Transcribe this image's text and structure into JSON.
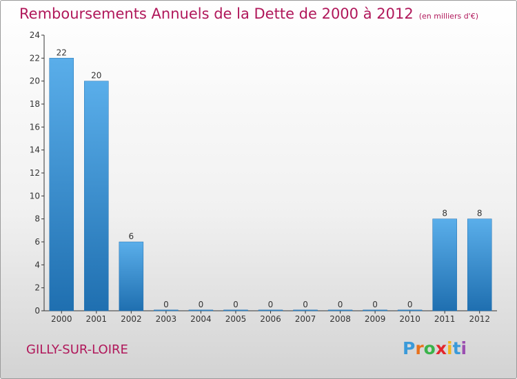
{
  "title": "Remboursements Annuels de la Dette de 2000 à 2012",
  "subtitle": "(en milliers d'€)",
  "commune": "GILLY-SUR-LOIRE",
  "logo": {
    "letters": [
      "P",
      "r",
      "o",
      "x",
      "i",
      "t",
      "i"
    ],
    "colors": [
      "#3a9ad9",
      "#e8711c",
      "#3ab34a",
      "#e3262d",
      "#f2b61d",
      "#3a9ad9",
      "#9b4fb0"
    ]
  },
  "colors": {
    "accent": "#b0175a",
    "bar_top": "#5aaeea",
    "bar_bottom": "#1f6fb0"
  },
  "chart_data": {
    "type": "bar",
    "categories": [
      "2000",
      "2001",
      "2002",
      "2003",
      "2004",
      "2005",
      "2006",
      "2007",
      "2008",
      "2009",
      "2010",
      "2011",
      "2012"
    ],
    "values": [
      22,
      20,
      6,
      0,
      0,
      0,
      0,
      0,
      0,
      0,
      0,
      8,
      8
    ],
    "data_labels": [
      "22",
      "20",
      "6",
      "0",
      "0",
      "0",
      "0",
      "0",
      "0",
      "0",
      "0",
      "8",
      "8"
    ],
    "yticks": [
      0,
      2,
      4,
      6,
      8,
      10,
      12,
      14,
      16,
      18,
      20,
      22,
      24
    ],
    "ylim": [
      0,
      24
    ],
    "title": "Remboursements Annuels de la Dette de 2000 à 2012",
    "ylabel": "",
    "xlabel": "",
    "grid": false,
    "legend": "none"
  }
}
